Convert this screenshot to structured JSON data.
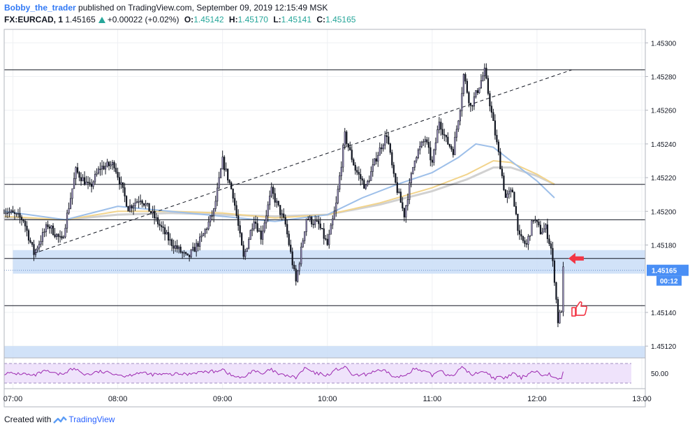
{
  "header": {
    "author": "Bobby_the_trader",
    "published_text": "published on TradingView.com, September 09, 2019 12:15:49 MSK",
    "symbol": "FX:EURCAD, 1",
    "last_price": "1.45165",
    "change": "+0.00022 (+0.02%)",
    "open_label": "O:",
    "open": "1.45142",
    "high_label": "H:",
    "high": "1.45170",
    "low_label": "L:",
    "low": "1.45141",
    "close_label": "C:",
    "close": "1.45165"
  },
  "footer": {
    "created_with": "Created with",
    "brand": "TradingView"
  },
  "colors": {
    "up_candle": "#131722",
    "candle_body": "#b0a2d6",
    "ma_fast": "#9dbfe9",
    "ma_mid": "#f2d48c",
    "ma_slow": "#d1d1d1",
    "zone": "#c9ddf7",
    "rsi_fill": "#efe3fb",
    "rsi_line": "#9c27b0",
    "arrow": "#f23645",
    "price_label_bg": "#4a8ff5"
  },
  "chart_data": {
    "type": "candlestick",
    "symbol": "FX:EURCAD",
    "interval": "1",
    "x_axis": {
      "start_time": "06:55",
      "end_time": "13:02",
      "ticks": [
        "07:00",
        "08:00",
        "09:00",
        "10:00",
        "11:00",
        "12:00",
        "13:00"
      ]
    },
    "y_axis": {
      "range": [
        1.45113,
        1.45308
      ],
      "ticks": [
        "1.45300",
        "1.45280",
        "1.45260",
        "1.45240",
        "1.45220",
        "1.45200",
        "1.45180",
        "1.45140",
        "1.45120"
      ]
    },
    "price_anchors": [
      {
        "time": "06:55",
        "price": 1.45201
      },
      {
        "time": "07:06",
        "price": 1.45195
      },
      {
        "time": "07:12",
        "price": 1.45175
      },
      {
        "time": "07:20",
        "price": 1.45192
      },
      {
        "time": "07:28",
        "price": 1.45182
      },
      {
        "time": "07:36",
        "price": 1.45224
      },
      {
        "time": "07:44",
        "price": 1.45214
      },
      {
        "time": "07:50",
        "price": 1.45226
      },
      {
        "time": "07:58",
        "price": 1.45228
      },
      {
        "time": "08:06",
        "price": 1.45202
      },
      {
        "time": "08:13",
        "price": 1.45208
      },
      {
        "time": "08:20",
        "price": 1.45198
      },
      {
        "time": "08:30",
        "price": 1.45182
      },
      {
        "time": "08:40",
        "price": 1.45172
      },
      {
        "time": "08:48",
        "price": 1.45184
      },
      {
        "time": "08:55",
        "price": 1.452
      },
      {
        "time": "09:00",
        "price": 1.4523
      },
      {
        "time": "09:06",
        "price": 1.4521
      },
      {
        "time": "09:12",
        "price": 1.45172
      },
      {
        "time": "09:18",
        "price": 1.45196
      },
      {
        "time": "09:22",
        "price": 1.45185
      },
      {
        "time": "09:28",
        "price": 1.45212
      },
      {
        "time": "09:36",
        "price": 1.45192
      },
      {
        "time": "09:42",
        "price": 1.45158
      },
      {
        "time": "09:48",
        "price": 1.45196
      },
      {
        "time": "09:55",
        "price": 1.45192
      },
      {
        "time": "10:00",
        "price": 1.4518
      },
      {
        "time": "10:05",
        "price": 1.45204
      },
      {
        "time": "10:10",
        "price": 1.45245
      },
      {
        "time": "10:16",
        "price": 1.45225
      },
      {
        "time": "10:22",
        "price": 1.45214
      },
      {
        "time": "10:28",
        "price": 1.45232
      },
      {
        "time": "10:34",
        "price": 1.45246
      },
      {
        "time": "10:38",
        "price": 1.4522
      },
      {
        "time": "10:44",
        "price": 1.45198
      },
      {
        "time": "10:50",
        "price": 1.45232
      },
      {
        "time": "10:56",
        "price": 1.45243
      },
      {
        "time": "11:00",
        "price": 1.45228
      },
      {
        "time": "11:04",
        "price": 1.45254
      },
      {
        "time": "11:08",
        "price": 1.45242
      },
      {
        "time": "11:12",
        "price": 1.45236
      },
      {
        "time": "11:16",
        "price": 1.45262
      },
      {
        "time": "11:18",
        "price": 1.45281
      },
      {
        "time": "11:22",
        "price": 1.45262
      },
      {
        "time": "11:26",
        "price": 1.45272
      },
      {
        "time": "11:30",
        "price": 1.45283
      },
      {
        "time": "11:34",
        "price": 1.45258
      },
      {
        "time": "11:38",
        "price": 1.45234
      },
      {
        "time": "11:42",
        "price": 1.45208
      },
      {
        "time": "11:46",
        "price": 1.45212
      },
      {
        "time": "11:50",
        "price": 1.45184
      },
      {
        "time": "11:54",
        "price": 1.4518
      },
      {
        "time": "11:58",
        "price": 1.45196
      },
      {
        "time": "12:02",
        "price": 1.45188
      },
      {
        "time": "12:05",
        "price": 1.4519
      },
      {
        "time": "12:08",
        "price": 1.45178
      },
      {
        "time": "12:10",
        "price": 1.4516
      },
      {
        "time": "12:12",
        "price": 1.45135
      },
      {
        "time": "12:14",
        "price": 1.45142
      },
      {
        "time": "12:15",
        "price": 1.45165
      }
    ],
    "moving_averages": [
      {
        "name": "fast",
        "points": [
          [
            "06:55",
            1.452
          ],
          [
            "07:30",
            1.45195
          ],
          [
            "08:00",
            1.45203
          ],
          [
            "08:30",
            1.452
          ],
          [
            "09:00",
            1.45197
          ],
          [
            "09:30",
            1.45194
          ],
          [
            "10:00",
            1.45198
          ],
          [
            "10:20",
            1.45208
          ],
          [
            "10:40",
            1.45216
          ],
          [
            "11:00",
            1.45223
          ],
          [
            "11:15",
            1.45232
          ],
          [
            "11:25",
            1.4524
          ],
          [
            "11:35",
            1.45238
          ],
          [
            "11:45",
            1.4523
          ],
          [
            "12:00",
            1.45218
          ],
          [
            "12:10",
            1.45208
          ]
        ]
      },
      {
        "name": "mid",
        "points": [
          [
            "06:55",
            1.45197
          ],
          [
            "07:30",
            1.45195
          ],
          [
            "08:00",
            1.452
          ],
          [
            "08:30",
            1.452
          ],
          [
            "09:00",
            1.45199
          ],
          [
            "09:30",
            1.45196
          ],
          [
            "10:00",
            1.45198
          ],
          [
            "10:30",
            1.45205
          ],
          [
            "11:00",
            1.45214
          ],
          [
            "11:20",
            1.45222
          ],
          [
            "11:35",
            1.4523
          ],
          [
            "11:45",
            1.45229
          ],
          [
            "12:00",
            1.45222
          ],
          [
            "12:10",
            1.45216
          ]
        ]
      },
      {
        "name": "slow",
        "points": [
          [
            "06:55",
            1.45196
          ],
          [
            "07:30",
            1.45195
          ],
          [
            "08:00",
            1.45198
          ],
          [
            "08:30",
            1.45199
          ],
          [
            "09:00",
            1.45198
          ],
          [
            "09:30",
            1.45197
          ],
          [
            "10:00",
            1.45198
          ],
          [
            "10:30",
            1.45204
          ],
          [
            "11:00",
            1.45212
          ],
          [
            "11:20",
            1.45219
          ],
          [
            "11:35",
            1.45226
          ],
          [
            "11:45",
            1.45226
          ],
          [
            "12:00",
            1.45221
          ],
          [
            "12:10",
            1.45216
          ]
        ]
      }
    ],
    "horizontal_lines": [
      1.45284,
      1.45216,
      1.45195,
      1.45172,
      1.45144
    ],
    "zones": [
      {
        "from": 1.45163,
        "to": 1.45177,
        "start": "07:00",
        "end": "13:02"
      },
      {
        "from": 1.45113,
        "to": 1.4512,
        "start": "06:55",
        "end": "13:02"
      }
    ],
    "trendline": {
      "start": [
        "07:12",
        1.45175
      ],
      "end": [
        "12:20",
        1.45284
      ],
      "style": "dashed"
    },
    "current_price_line": 1.45165,
    "price_label": {
      "value": "1.45165",
      "countdown": "00:12"
    },
    "annotations": [
      {
        "type": "arrow-left",
        "time": "12:18",
        "price": 1.45172
      },
      {
        "type": "thumbs-up",
        "time": "12:20",
        "price": 1.45142
      }
    ],
    "rsi": {
      "ticks": [
        "50.00"
      ],
      "level": 50
    }
  }
}
